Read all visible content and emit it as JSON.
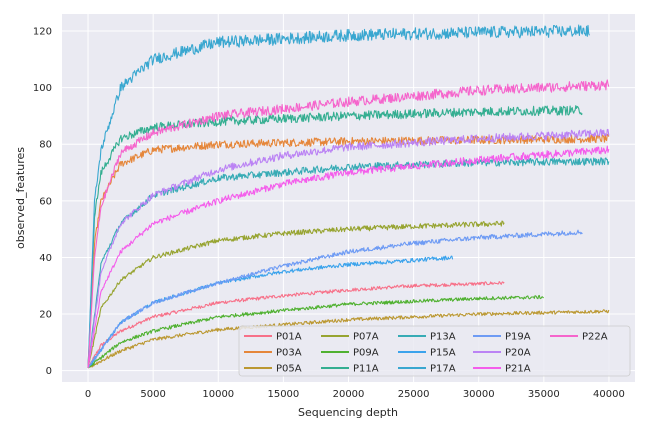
{
  "chart_data": {
    "type": "line",
    "title": "",
    "xlabel": "Sequencing depth",
    "ylabel": "observed_features",
    "xlim": [
      -2000,
      42000
    ],
    "ylim": [
      -4,
      126
    ],
    "xticks": [
      0,
      5000,
      10000,
      15000,
      20000,
      25000,
      30000,
      35000,
      40000
    ],
    "yticks": [
      0,
      20,
      40,
      60,
      80,
      100,
      120
    ],
    "grid": true,
    "background": "#eaeaf2",
    "legend_position": "lower-right",
    "legend_columns": 5,
    "series": [
      {
        "name": "P01A",
        "color": "#f77189",
        "x": [
          0,
          1000,
          2500,
          5000,
          10000,
          15000,
          20000,
          25000,
          32000
        ],
        "y": [
          1,
          9,
          14,
          19,
          24,
          26.5,
          28.5,
          30,
          31
        ]
      },
      {
        "name": "P03A",
        "color": "#e5863a",
        "x": [
          0,
          500,
          1000,
          2500,
          5000,
          10000,
          20000,
          30000,
          40000
        ],
        "y": [
          1,
          45,
          60,
          73,
          78,
          80,
          81,
          81.5,
          82
        ]
      },
      {
        "name": "P05A",
        "color": "#bb9832",
        "x": [
          0,
          2500,
          5000,
          10000,
          20000,
          30000,
          40000
        ],
        "y": [
          1,
          7,
          11,
          14.5,
          18,
          20,
          21
        ]
      },
      {
        "name": "P07A",
        "color": "#97a431",
        "x": [
          0,
          1000,
          2500,
          5000,
          10000,
          15000,
          20000,
          25000,
          32000
        ],
        "y": [
          1,
          22,
          32,
          40,
          46,
          48.5,
          50,
          51,
          52
        ]
      },
      {
        "name": "P09A",
        "color": "#50b131",
        "x": [
          0,
          2500,
          5000,
          10000,
          20000,
          30000,
          35000
        ],
        "y": [
          1,
          10,
          14,
          19,
          23.5,
          25.5,
          26
        ]
      },
      {
        "name": "P11A",
        "color": "#34ae91",
        "x": [
          0,
          500,
          1000,
          2500,
          5000,
          10000,
          20000,
          30000,
          38000
        ],
        "y": [
          1,
          55,
          70,
          82,
          86,
          88,
          90,
          91.5,
          92
        ]
      },
      {
        "name": "P13A",
        "color": "#37abb5",
        "x": [
          0,
          1000,
          2500,
          5000,
          10000,
          20000,
          30000,
          40000
        ],
        "y": [
          1,
          38,
          52,
          62,
          68,
          72,
          73.5,
          74
        ]
      },
      {
        "name": "P15A",
        "color": "#3ba3ec",
        "x": [
          0,
          2500,
          5000,
          10000,
          15000,
          20000,
          25000,
          28000
        ],
        "y": [
          1,
          17,
          24,
          31,
          35,
          37.5,
          39,
          40
        ]
      },
      {
        "name": "P17A",
        "color": "#39a7d0",
        "x": [
          0,
          500,
          1000,
          2500,
          5000,
          10000,
          20000,
          30000,
          38500
        ],
        "y": [
          1,
          60,
          78,
          100,
          110,
          116,
          118.5,
          119.5,
          120
        ]
      },
      {
        "name": "P19A",
        "color": "#6e9bf4",
        "x": [
          0,
          2500,
          5000,
          10000,
          15000,
          20000,
          25000,
          30000,
          38000
        ],
        "y": [
          1,
          17,
          24,
          31,
          37,
          42,
          45,
          47,
          49
        ]
      },
      {
        "name": "P20A",
        "color": "#bb83f4",
        "x": [
          0,
          1000,
          2500,
          5000,
          10000,
          15000,
          20000,
          30000,
          40000
        ],
        "y": [
          1,
          35,
          52,
          62,
          71,
          76,
          79,
          82,
          84
        ]
      },
      {
        "name": "P21A",
        "color": "#f45deb",
        "x": [
          0,
          1000,
          2500,
          5000,
          10000,
          15000,
          20000,
          30000,
          40000
        ],
        "y": [
          1,
          28,
          42,
          52,
          60,
          66,
          70,
          74.5,
          78
        ]
      },
      {
        "name": "P22A",
        "color": "#f565cc",
        "x": [
          0,
          500,
          1000,
          2500,
          5000,
          10000,
          20000,
          30000,
          40000
        ],
        "y": [
          1,
          40,
          58,
          77,
          84,
          90,
          95,
          99,
          101
        ]
      }
    ]
  }
}
